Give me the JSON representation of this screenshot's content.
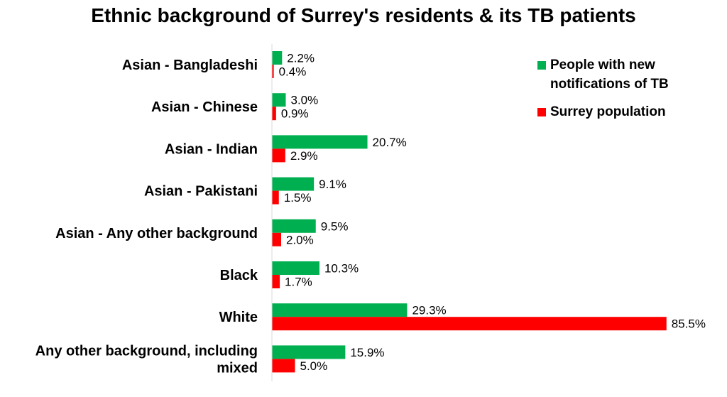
{
  "chart_data": {
    "type": "bar",
    "orientation": "horizontal",
    "title": "Ethnic background of Surrey's residents & its TB patients",
    "categories": [
      [
        "Asian - Bangladeshi"
      ],
      [
        "Asian - Chinese"
      ],
      [
        "Asian - Indian"
      ],
      [
        "Asian - Pakistani"
      ],
      [
        "Asian - Any other background"
      ],
      [
        "Black"
      ],
      [
        "White"
      ],
      [
        "Any other background, including",
        "mixed"
      ]
    ],
    "series": [
      {
        "name": "People with new notifications of TB",
        "color": "#00b050",
        "values": [
          2.2,
          3.0,
          20.7,
          9.1,
          9.5,
          10.3,
          29.3,
          15.9
        ],
        "labels": [
          "2.2%",
          "3.0%",
          "20.7%",
          "9.1%",
          "9.5%",
          "10.3%",
          "29.3%",
          "15.9%"
        ]
      },
      {
        "name": "Surrey population",
        "color": "#ff0000",
        "values": [
          0.4,
          0.9,
          2.9,
          1.5,
          2.0,
          1.7,
          85.5,
          5.0
        ],
        "labels": [
          "0.4%",
          "0.9%",
          "2.9%",
          "1.5%",
          "2.0%",
          "1.7%",
          "85.5%",
          "5.0%"
        ]
      }
    ],
    "xlim": [
      0,
      100
    ],
    "grid": false,
    "legend_position": "top-right",
    "legend_lines": [
      [
        "People with new",
        "notifications of TB"
      ],
      [
        "Surrey population"
      ]
    ]
  }
}
